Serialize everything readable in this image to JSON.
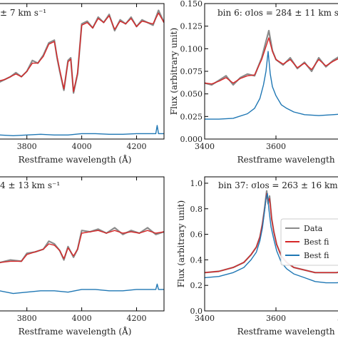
{
  "colors": {
    "data": "#8a8a8a",
    "fit": "#d62728",
    "component": "#1f77b4",
    "axis": "#000000",
    "legend_border": "#cccccc"
  },
  "chart_data": [
    {
      "type": "line",
      "panel": "top-left",
      "title": "± 7 km s⁻¹",
      "xlabel": "Restframe wavelength (Å)",
      "ylabel": "",
      "xlim": [
        3650,
        4300
      ],
      "ylim": [
        0.0,
        1.0
      ],
      "xticks": [
        3800,
        4000,
        4200
      ],
      "xtick_labels": [
        "3800",
        "4000",
        "4200"
      ],
      "yticks": [],
      "ytick_labels": [],
      "series": [
        {
          "key": "data",
          "x": [
            3650,
            3680,
            3700,
            3720,
            3740,
            3760,
            3780,
            3800,
            3820,
            3840,
            3860,
            3880,
            3900,
            3910,
            3920,
            3935,
            3950,
            3960,
            3970,
            3985,
            4000,
            4020,
            4040,
            4060,
            4080,
            4100,
            4120,
            4140,
            4160,
            4180,
            4200,
            4220,
            4240,
            4260,
            4280,
            4300
          ],
          "y": [
            0.5,
            0.47,
            0.42,
            0.44,
            0.46,
            0.49,
            0.46,
            0.5,
            0.58,
            0.56,
            0.62,
            0.71,
            0.73,
            0.6,
            0.5,
            0.36,
            0.58,
            0.6,
            0.34,
            0.48,
            0.85,
            0.87,
            0.82,
            0.9,
            0.86,
            0.92,
            0.8,
            0.88,
            0.85,
            0.9,
            0.83,
            0.88,
            0.86,
            0.84,
            0.95,
            0.86
          ]
        },
        {
          "key": "fit",
          "x": [
            3650,
            3680,
            3700,
            3720,
            3740,
            3760,
            3780,
            3800,
            3820,
            3840,
            3860,
            3880,
            3900,
            3910,
            3920,
            3935,
            3950,
            3960,
            3970,
            3985,
            4000,
            4020,
            4040,
            4060,
            4080,
            4100,
            4120,
            4140,
            4160,
            4180,
            4200,
            4220,
            4240,
            4260,
            4280,
            4300
          ],
          "y": [
            0.49,
            0.47,
            0.43,
            0.44,
            0.46,
            0.48,
            0.46,
            0.5,
            0.56,
            0.56,
            0.61,
            0.7,
            0.72,
            0.61,
            0.51,
            0.37,
            0.57,
            0.59,
            0.35,
            0.49,
            0.84,
            0.86,
            0.82,
            0.89,
            0.86,
            0.91,
            0.81,
            0.87,
            0.85,
            0.89,
            0.83,
            0.87,
            0.86,
            0.85,
            0.93,
            0.86
          ]
        },
        {
          "key": "component",
          "x": [
            3650,
            3700,
            3750,
            3800,
            3850,
            3900,
            3950,
            4000,
            4050,
            4100,
            4150,
            4200,
            4250,
            4270,
            4275,
            4280,
            4300
          ],
          "y": [
            0.03,
            0.03,
            0.025,
            0.03,
            0.035,
            0.03,
            0.03,
            0.04,
            0.04,
            0.035,
            0.035,
            0.04,
            0.04,
            0.04,
            0.1,
            0.04,
            0.04
          ]
        }
      ]
    },
    {
      "type": "line",
      "panel": "top-right",
      "title": "bin 6: σlos = 284 ± 11 km s",
      "xlabel": "Restframe wavelength (Å)",
      "ylabel": "Flux (arbitrary unit)",
      "xlim": [
        3400,
        3900
      ],
      "ylim": [
        0.0,
        0.15
      ],
      "xticks": [
        3400,
        3600
      ],
      "xtick_labels": [
        "3400",
        "3600"
      ],
      "yticks": [
        0.0,
        0.025,
        0.05,
        0.075,
        0.1,
        0.125,
        0.15
      ],
      "ytick_labels": [
        "0.000",
        "0.025",
        "0.050",
        "0.075",
        "0.100",
        "0.125",
        "0.150"
      ],
      "series": [
        {
          "key": "data",
          "x": [
            3400,
            3420,
            3440,
            3460,
            3480,
            3500,
            3520,
            3540,
            3560,
            3570,
            3580,
            3590,
            3600,
            3620,
            3640,
            3660,
            3680,
            3700,
            3720,
            3740,
            3760,
            3780,
            3800
          ],
          "y": [
            0.062,
            0.06,
            0.065,
            0.07,
            0.06,
            0.068,
            0.072,
            0.07,
            0.09,
            0.105,
            0.12,
            0.098,
            0.088,
            0.082,
            0.09,
            0.078,
            0.085,
            0.075,
            0.09,
            0.08,
            0.087,
            0.092,
            0.085
          ]
        },
        {
          "key": "fit",
          "x": [
            3400,
            3420,
            3440,
            3460,
            3480,
            3500,
            3520,
            3540,
            3560,
            3570,
            3580,
            3590,
            3600,
            3620,
            3640,
            3660,
            3680,
            3700,
            3720,
            3740,
            3760,
            3780,
            3800
          ],
          "y": [
            0.062,
            0.061,
            0.064,
            0.068,
            0.062,
            0.067,
            0.07,
            0.071,
            0.088,
            0.1,
            0.112,
            0.097,
            0.088,
            0.083,
            0.088,
            0.079,
            0.084,
            0.077,
            0.088,
            0.081,
            0.086,
            0.09,
            0.085
          ]
        },
        {
          "key": "component",
          "x": [
            3400,
            3440,
            3480,
            3520,
            3540,
            3555,
            3565,
            3572,
            3578,
            3584,
            3590,
            3600,
            3615,
            3630,
            3650,
            3680,
            3720,
            3760,
            3800
          ],
          "y": [
            0.022,
            0.022,
            0.023,
            0.028,
            0.034,
            0.045,
            0.06,
            0.075,
            0.097,
            0.072,
            0.058,
            0.048,
            0.038,
            0.034,
            0.03,
            0.027,
            0.026,
            0.027,
            0.028
          ]
        }
      ]
    },
    {
      "type": "line",
      "panel": "bottom-left",
      "title": "4 ± 13 km s⁻¹",
      "xlabel": "Restframe wavelength (Å)",
      "ylabel": "",
      "xlim": [
        3650,
        4300
      ],
      "ylim": [
        0.0,
        1.0
      ],
      "xticks": [
        3800,
        4000,
        4200
      ],
      "xtick_labels": [
        "3800",
        "4000",
        "4200"
      ],
      "yticks": [],
      "ytick_labels": [],
      "series": [
        {
          "key": "data",
          "x": [
            3650,
            3700,
            3740,
            3780,
            3800,
            3830,
            3860,
            3880,
            3900,
            3920,
            3935,
            3950,
            3970,
            3985,
            4000,
            4030,
            4060,
            4090,
            4120,
            4150,
            4180,
            4210,
            4240,
            4270,
            4300
          ],
          "y": [
            0.38,
            0.36,
            0.38,
            0.37,
            0.43,
            0.44,
            0.46,
            0.52,
            0.5,
            0.45,
            0.38,
            0.48,
            0.4,
            0.46,
            0.6,
            0.59,
            0.61,
            0.58,
            0.62,
            0.57,
            0.6,
            0.58,
            0.62,
            0.57,
            0.59
          ]
        },
        {
          "key": "fit",
          "x": [
            3650,
            3700,
            3740,
            3780,
            3800,
            3830,
            3860,
            3880,
            3900,
            3920,
            3935,
            3950,
            3970,
            3985,
            4000,
            4030,
            4060,
            4090,
            4120,
            4150,
            4180,
            4210,
            4240,
            4270,
            4300
          ],
          "y": [
            0.38,
            0.36,
            0.37,
            0.37,
            0.42,
            0.44,
            0.46,
            0.5,
            0.49,
            0.45,
            0.39,
            0.47,
            0.41,
            0.46,
            0.58,
            0.59,
            0.6,
            0.58,
            0.6,
            0.58,
            0.59,
            0.58,
            0.6,
            0.58,
            0.59
          ]
        },
        {
          "key": "component",
          "x": [
            3650,
            3700,
            3750,
            3800,
            3850,
            3900,
            3950,
            4000,
            4050,
            4100,
            4150,
            4200,
            4250,
            4270,
            4275,
            4280,
            4300
          ],
          "y": [
            0.16,
            0.15,
            0.13,
            0.14,
            0.15,
            0.15,
            0.14,
            0.16,
            0.16,
            0.15,
            0.15,
            0.16,
            0.16,
            0.16,
            0.2,
            0.16,
            0.16
          ]
        }
      ]
    },
    {
      "type": "line",
      "panel": "bottom-right",
      "title": "bin 37: σlos = 263 ± 16 km",
      "xlabel": "Restframe wavelength (Å)",
      "ylabel": "Flux (arbitrary unit)",
      "xlim": [
        3400,
        3900
      ],
      "ylim": [
        0.0,
        1.05
      ],
      "xticks": [
        3400,
        3600,
        3800
      ],
      "xtick_labels": [
        "3400",
        "3600",
        "3800"
      ],
      "yticks": [
        0.0,
        0.2,
        0.4,
        0.6,
        0.8,
        1.0
      ],
      "ytick_labels": [
        "0.0",
        "0.2",
        "0.4",
        "0.6",
        "0.8",
        "1.0"
      ],
      "legend": [
        "Data",
        "Best fi",
        "Best fi"
      ],
      "legend_loc": "right",
      "series": [
        {
          "key": "data",
          "x": [
            3400,
            3440,
            3480,
            3510,
            3530,
            3545,
            3555,
            3562,
            3568,
            3574,
            3578,
            3582,
            3588,
            3594,
            3602,
            3615,
            3630,
            3650,
            3680,
            3710,
            3740,
            3770,
            3800,
            3830,
            3860
          ],
          "y": [
            0.3,
            0.31,
            0.34,
            0.38,
            0.44,
            0.5,
            0.58,
            0.68,
            0.8,
            0.94,
            0.84,
            0.9,
            0.72,
            0.62,
            0.52,
            0.43,
            0.38,
            0.34,
            0.32,
            0.3,
            0.3,
            0.3,
            0.32,
            0.31,
            0.3
          ]
        },
        {
          "key": "fit",
          "x": [
            3400,
            3440,
            3480,
            3510,
            3530,
            3545,
            3555,
            3562,
            3568,
            3574,
            3578,
            3582,
            3588,
            3594,
            3602,
            3615,
            3630,
            3650,
            3680,
            3710,
            3740,
            3770,
            3800,
            3830,
            3860
          ],
          "y": [
            0.3,
            0.31,
            0.34,
            0.38,
            0.44,
            0.5,
            0.58,
            0.68,
            0.79,
            0.92,
            0.86,
            0.88,
            0.72,
            0.62,
            0.52,
            0.43,
            0.38,
            0.34,
            0.32,
            0.3,
            0.3,
            0.3,
            0.32,
            0.31,
            0.3
          ]
        },
        {
          "key": "component",
          "x": [
            3400,
            3440,
            3480,
            3510,
            3530,
            3545,
            3555,
            3562,
            3568,
            3572,
            3576,
            3580,
            3586,
            3594,
            3602,
            3615,
            3630,
            3650,
            3680,
            3710,
            3740,
            3770,
            3800,
            3830,
            3860
          ],
          "y": [
            0.26,
            0.27,
            0.3,
            0.34,
            0.4,
            0.46,
            0.55,
            0.65,
            0.78,
            0.88,
            0.92,
            0.8,
            0.66,
            0.56,
            0.47,
            0.38,
            0.33,
            0.29,
            0.26,
            0.23,
            0.22,
            0.22,
            0.23,
            0.22,
            0.22
          ]
        }
      ]
    }
  ]
}
